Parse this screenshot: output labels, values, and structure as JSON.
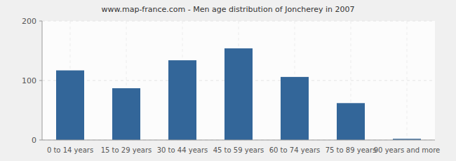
{
  "chart_data": {
    "type": "bar",
    "title": "www.map-france.com - Men age distribution of Joncherey in 2007",
    "categories": [
      "0 to 14 years",
      "15 to 29 years",
      "30 to 44 years",
      "45 to 59 years",
      "60 to 74 years",
      "75 to 89 years",
      "90 years and more"
    ],
    "values": [
      117,
      87,
      134,
      154,
      106,
      62,
      2
    ],
    "color": "#336699",
    "ylim": [
      0,
      200
    ],
    "yticks": [
      0,
      100,
      200
    ],
    "grid": true
  }
}
